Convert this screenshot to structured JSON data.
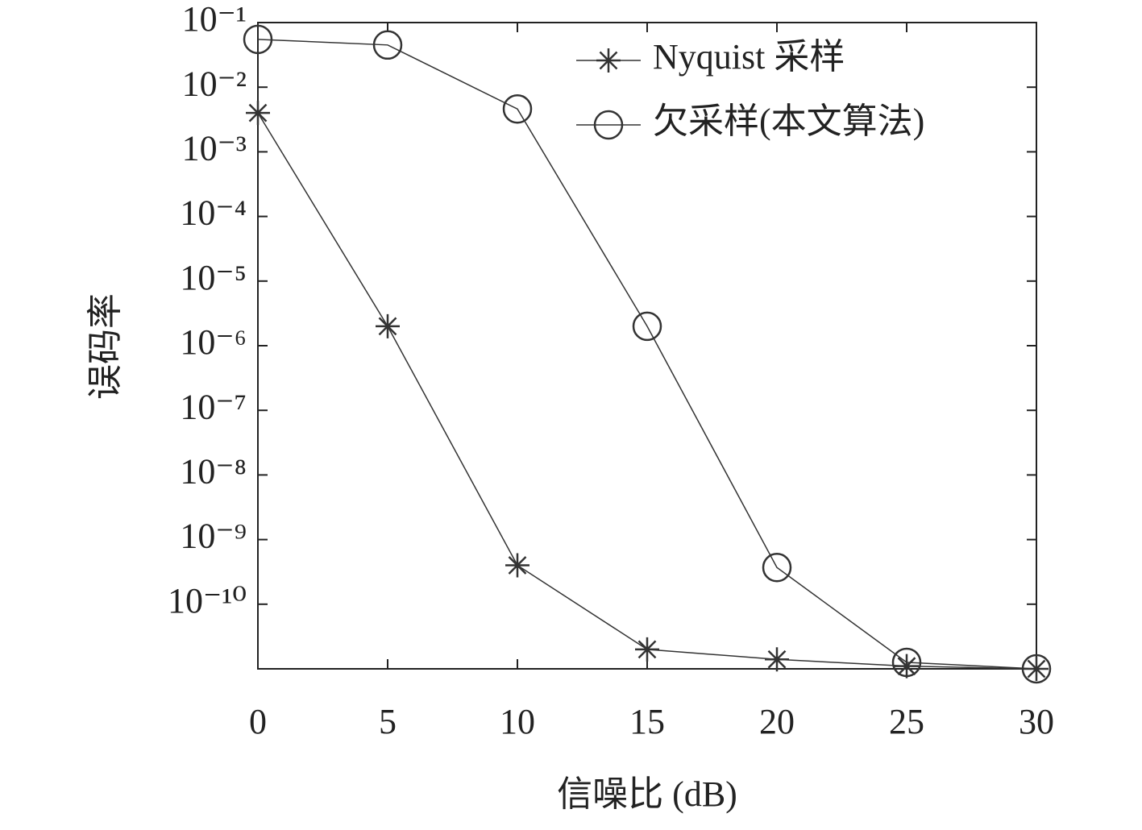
{
  "chart_data": {
    "type": "line",
    "x_label": "信噪比 (dB)",
    "y_label": "误码率",
    "x": [
      0,
      5,
      10,
      15,
      20,
      25,
      30
    ],
    "xlim": [
      0,
      30
    ],
    "xticks": [
      0,
      5,
      10,
      15,
      20,
      25,
      30
    ],
    "yscale": "log",
    "ylim": [
      1e-11,
      0.1
    ],
    "yticks": [
      {
        "value": 0.1,
        "label": "10⁻¹"
      },
      {
        "value": 0.01,
        "label": "10⁻²"
      },
      {
        "value": 0.001,
        "label": "10⁻³"
      },
      {
        "value": 0.0001,
        "label": "10⁻⁴"
      },
      {
        "value": 1e-05,
        "label": "10⁻⁵"
      },
      {
        "value": 1e-06,
        "label": "10⁻⁶"
      },
      {
        "value": 1e-07,
        "label": "10⁻⁷"
      },
      {
        "value": 1e-08,
        "label": "10⁻⁸"
      },
      {
        "value": 1e-09,
        "label": "10⁻⁹"
      },
      {
        "value": 1e-10,
        "label": "10⁻¹⁰"
      }
    ],
    "legend": "upper right",
    "series": [
      {
        "name": "Nyquist 采样",
        "color": "#333333",
        "marker": "asterisk",
        "values": [
          0.004,
          2e-06,
          4e-10,
          2e-11,
          1.4e-11,
          1.1e-11,
          1e-11
        ]
      },
      {
        "name": "欠采样(本文算法)",
        "color": "#333333",
        "marker": "circle",
        "values": [
          0.055,
          0.045,
          0.0046,
          2e-06,
          3.7e-10,
          1.26e-11,
          1e-11
        ]
      }
    ]
  }
}
